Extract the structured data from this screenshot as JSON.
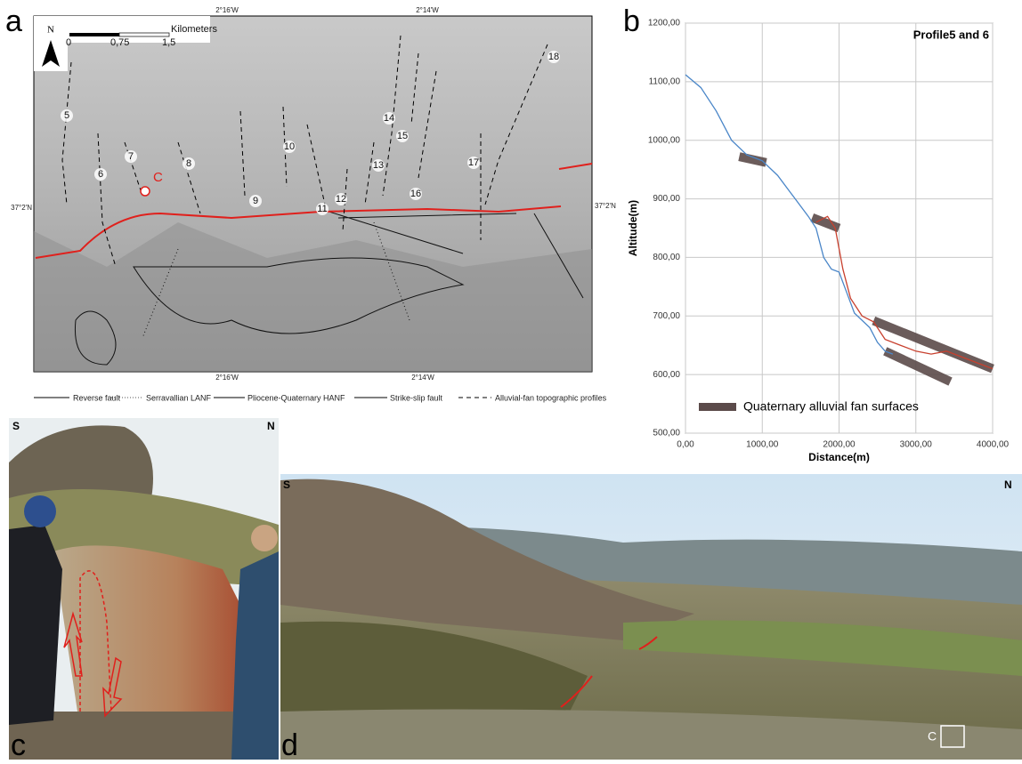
{
  "panel_a": {
    "label": "a",
    "north": "N",
    "scale": {
      "title": "Kilometers",
      "ticks": [
        "0",
        "0,75",
        "1,5"
      ]
    },
    "coords": {
      "top": [
        "2°16'W",
        "2°14'W"
      ],
      "bottom": [
        "2°16'W",
        "2°14'W"
      ],
      "left": "37°2'N",
      "right": "37°2'N"
    },
    "profiles": [
      "5",
      "6",
      "7",
      "8",
      "9",
      "10",
      "11",
      "12",
      "13",
      "14",
      "15",
      "16",
      "17",
      "18"
    ],
    "site": "C",
    "legend": [
      "Reverse fault",
      "Serravallian LANF",
      "Pliocene-Quaternary HANF",
      "Strike-slip fault",
      "Alluvial-fan topographic profiles"
    ]
  },
  "chart_data": {
    "type": "line",
    "panel_label": "b",
    "title": "Profile5 and 6",
    "x_label": "Distance(m)",
    "y_label": "Altitude(m)",
    "xlim": [
      0,
      4000
    ],
    "ylim": [
      500,
      1200
    ],
    "xticks": [
      {
        "value": 0,
        "label": "0,00"
      },
      {
        "value": 1000,
        "label": "1000,00"
      },
      {
        "value": 2000,
        "label": "2000,00"
      },
      {
        "value": 3000,
        "label": "3000,00"
      },
      {
        "value": 4000,
        "label": "4000,00"
      }
    ],
    "yticks": [
      {
        "value": 500,
        "label": "500,00"
      },
      {
        "value": 600,
        "label": "600,00"
      },
      {
        "value": 700,
        "label": "700,00"
      },
      {
        "value": 800,
        "label": "800,00"
      },
      {
        "value": 900,
        "label": "900,00"
      },
      {
        "value": 1000,
        "label": "1000,00"
      },
      {
        "value": 1100,
        "label": "1100,00"
      },
      {
        "value": 1200,
        "label": "1200,00"
      }
    ],
    "grid": true,
    "series": [
      {
        "color": "#4a86c8",
        "x": [
          0,
          200,
          400,
          600,
          800,
          1000,
          1200,
          1400,
          1600,
          1700,
          1800,
          1900,
          2000,
          2100,
          2200,
          2400,
          2500,
          2600,
          2700
        ],
        "values": [
          1112,
          1090,
          1050,
          1000,
          975,
          965,
          940,
          905,
          870,
          850,
          800,
          780,
          775,
          740,
          705,
          680,
          655,
          640,
          635
        ]
      },
      {
        "color": "#c8402e",
        "x": [
          1700,
          1850,
          1950,
          2050,
          2150,
          2300,
          2450,
          2600,
          2800,
          3000,
          3200,
          3400,
          3600,
          3800,
          4000
        ],
        "values": [
          860,
          870,
          850,
          780,
          730,
          700,
          690,
          660,
          650,
          640,
          635,
          640,
          630,
          620,
          610
        ]
      }
    ],
    "fan_surfaces": {
      "name": "Quaternary alluvial fan surfaces",
      "color": "#5b4b4a",
      "segments": [
        {
          "x": [
            700,
            1050
          ],
          "y": [
            972,
            962
          ]
        },
        {
          "x": [
            1650,
            2000
          ],
          "y": [
            868,
            850
          ]
        },
        {
          "x": [
            2450,
            4000
          ],
          "y": [
            692,
            610
          ]
        },
        {
          "x": [
            2600,
            3450
          ],
          "y": [
            640,
            588
          ]
        }
      ]
    }
  },
  "panel_c": {
    "label": "c",
    "left": "S",
    "right": "N"
  },
  "panel_d": {
    "label": "d",
    "left": "S",
    "right": "N",
    "site": "C"
  }
}
